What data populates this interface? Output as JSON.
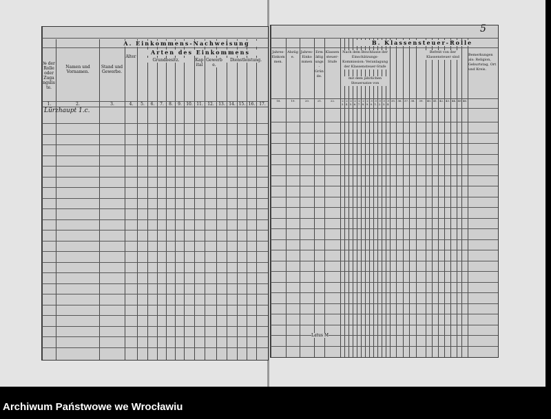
{
  "page_number": "5",
  "left": {
    "title": "A. Einkommens-Nachweisung",
    "subtitle": "Arten des Einkommens",
    "groups": [
      "Grundbesitz.",
      "Kapital",
      "Gewerbe.",
      "Dienstleistung."
    ],
    "headers": [
      "№ der Rolle oder Zugangsliste.",
      "Namen und Vornamen.",
      "Stand und Gewerbe.",
      "Alter"
    ],
    "column_numbers": [
      "1.",
      "2.",
      "3.",
      "4.",
      "5.",
      "6.",
      "7.",
      "8.",
      "9.",
      "10.",
      "11.",
      "12.",
      "13.",
      "14.",
      "15.",
      "16.",
      "17."
    ],
    "handwritten_entry": "Lürzhaupt 1.c."
  },
  "right": {
    "title": "B. Klassensteuer-Rolle",
    "headers": [
      "Jahres-Einkommen.",
      "Abzüge.",
      "Jahres-Einkommen",
      "Ermäßigungs-Gründe.",
      "Klassensteuer-Stufe",
      "Nach dem Beschlusse der Einschätzungs-Kommission: Veranlagung der Klassensteuer-Stufe",
      "mit dem jährlichen Steuersatze von",
      "Befreit von der Klassensteuer sind",
      "Bemerkungen als: Religion, Geburtstag, Ort und Kreis."
    ],
    "column_numbers": [
      "18.",
      "19.",
      "20.",
      "21.",
      "22.",
      "23.",
      "24.",
      "25.",
      "26.",
      "27.",
      "28.",
      "29.",
      "30.",
      "31.",
      "32.",
      "33.",
      "34.",
      "35.",
      "36.",
      "37.",
      "38.",
      "39.",
      "40.",
      "41.",
      "42.",
      "43.",
      "44.",
      "45.",
      "46."
    ],
    "latus": "Latus M"
  },
  "footer": {
    "archive_name": "Archiwum Państwowe we Wrocławiu"
  }
}
